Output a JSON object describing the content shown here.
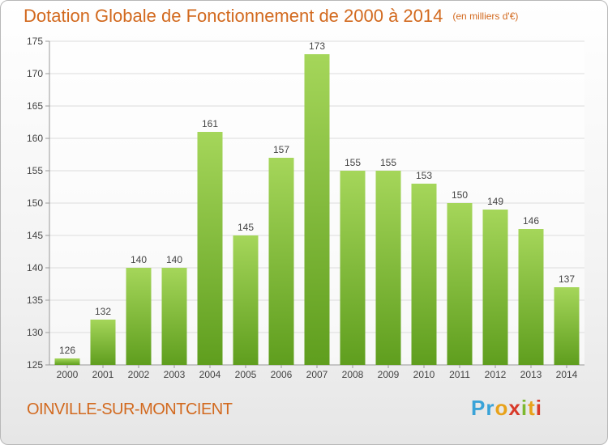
{
  "header": {
    "title": "Dotation Globale de Fonctionnement de 2000 à 2014",
    "subtitle": "(en milliers d'€)"
  },
  "footer": {
    "town": "OINVILLE-SUR-MONTCIENT",
    "logo_text": "Proxiti"
  },
  "colors": {
    "bar_light": "#a5d65a",
    "bar_dark": "#5f9e1e",
    "title": "#d2691e"
  },
  "chart_data": {
    "type": "bar",
    "categories": [
      "2000",
      "2001",
      "2002",
      "2003",
      "2004",
      "2005",
      "2006",
      "2007",
      "2008",
      "2009",
      "2010",
      "2011",
      "2012",
      "2013",
      "2014"
    ],
    "values": [
      126,
      132,
      140,
      140,
      161,
      145,
      157,
      173,
      155,
      155,
      153,
      150,
      149,
      146,
      137
    ],
    "ylim": [
      125,
      175
    ],
    "yticks": [
      125,
      130,
      135,
      140,
      145,
      150,
      155,
      160,
      165,
      170,
      175
    ],
    "grid": true,
    "title": "Dotation Globale de Fonctionnement de 2000 à 2014",
    "subtitle": "(en milliers d'€)",
    "xlabel": "",
    "ylabel": ""
  }
}
